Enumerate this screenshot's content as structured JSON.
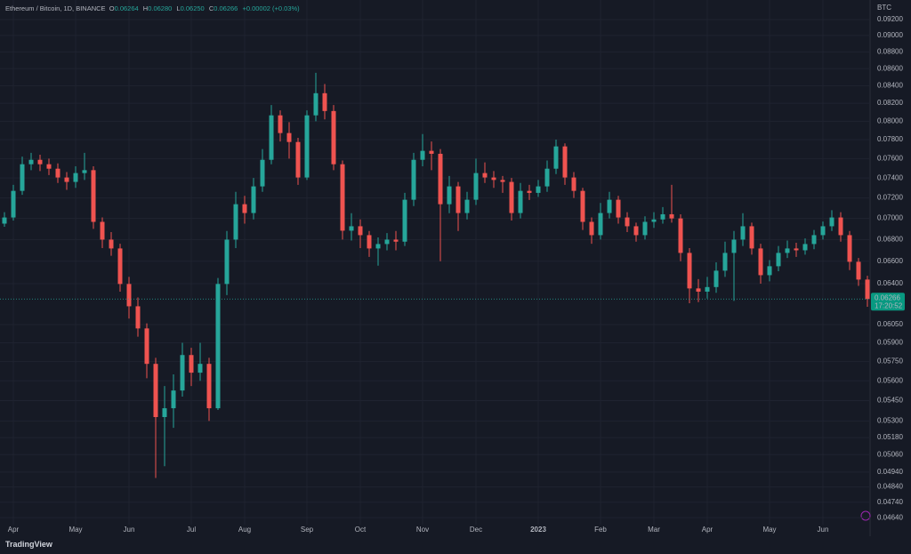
{
  "chart_data": {
    "type": "candlestick",
    "title": "Ethereum / Bitcoin, 1D, BINANCE",
    "header": {
      "o_label": "O",
      "o": "0.06264",
      "h_label": "H",
      "h": "0.06280",
      "l_label": "L",
      "l": "0.06250",
      "c_label": "C",
      "c": "0.06266",
      "change": "+0.00002 (+0.03%)"
    },
    "y_axis_label": "BTC",
    "y_scale": "log",
    "grid": true,
    "up_color": "#26a69a",
    "down_color": "#ef5350",
    "last_price": 0.06266,
    "countdown": "17:20:52",
    "brand": "TradingView",
    "ylim": [
      0.0454,
      0.0945
    ],
    "yticks": [
      {
        "value": 0.092,
        "label": "0.09200"
      },
      {
        "value": 0.09,
        "label": "0.09000"
      },
      {
        "value": 0.088,
        "label": "0.08800"
      },
      {
        "value": 0.086,
        "label": "0.08600"
      },
      {
        "value": 0.084,
        "label": "0.08400"
      },
      {
        "value": 0.082,
        "label": "0.08200"
      },
      {
        "value": 0.08,
        "label": "0.08000"
      },
      {
        "value": 0.078,
        "label": "0.07800"
      },
      {
        "value": 0.076,
        "label": "0.07600"
      },
      {
        "value": 0.074,
        "label": "0.07400"
      },
      {
        "value": 0.072,
        "label": "0.07200"
      },
      {
        "value": 0.07,
        "label": "0.07000"
      },
      {
        "value": 0.068,
        "label": "0.06800"
      },
      {
        "value": 0.066,
        "label": "0.06600"
      },
      {
        "value": 0.064,
        "label": "0.06400"
      },
      {
        "value": 0.0605,
        "label": "0.06050"
      },
      {
        "value": 0.059,
        "label": "0.05900"
      },
      {
        "value": 0.0575,
        "label": "0.05750"
      },
      {
        "value": 0.056,
        "label": "0.05600"
      },
      {
        "value": 0.0545,
        "label": "0.05450"
      },
      {
        "value": 0.053,
        "label": "0.05300"
      },
      {
        "value": 0.0518,
        "label": "0.05180"
      },
      {
        "value": 0.0506,
        "label": "0.05060"
      },
      {
        "value": 0.0494,
        "label": "0.04940"
      },
      {
        "value": 0.0484,
        "label": "0.04840"
      },
      {
        "value": 0.0474,
        "label": "0.04740"
      },
      {
        "value": 0.0464,
        "label": "0.04640"
      }
    ],
    "categories": [
      null,
      "Apr",
      null,
      null,
      null,
      null,
      null,
      null,
      "May",
      null,
      null,
      null,
      null,
      null,
      "Jun",
      null,
      null,
      null,
      null,
      null,
      null,
      "Jul",
      null,
      null,
      null,
      null,
      null,
      "Aug",
      null,
      null,
      null,
      null,
      null,
      null,
      "Sep",
      null,
      null,
      null,
      null,
      null,
      "Oct",
      null,
      null,
      null,
      null,
      null,
      null,
      "Nov",
      null,
      null,
      null,
      null,
      null,
      "Dec",
      null,
      null,
      null,
      null,
      null,
      null,
      "2023",
      null,
      null,
      null,
      null,
      null,
      null,
      "Feb",
      null,
      null,
      null,
      null,
      null,
      "Mar",
      null,
      null,
      null,
      null,
      null,
      "Apr",
      null,
      null,
      null,
      null,
      null,
      null,
      "May",
      null,
      null,
      null,
      null,
      null,
      "Jun",
      null,
      null,
      null,
      null,
      null
    ],
    "open": [
      0.0695,
      0.07009,
      0.0727,
      0.07541,
      0.07587,
      0.07541,
      0.07495,
      0.07405,
      0.0736,
      0.0745,
      0.0748,
      0.06967,
      0.06799,
      0.06717,
      0.06397,
      0.06204,
      0.06018,
      0.05732,
      0.05328,
      0.05393,
      0.05526,
      0.05802,
      0.05663,
      0.05732,
      0.05393,
      0.06397,
      0.06799,
      0.07138,
      0.07052,
      0.07315,
      0.07587,
      0.08065,
      0.07871,
      0.07775,
      0.07405,
      0.08065,
      0.08314,
      0.08113,
      0.07541,
      0.06883,
      0.06925,
      0.06841,
      0.06717,
      0.06758,
      0.06799,
      0.0678,
      0.07182,
      0.07587,
      0.07681,
      0.0765,
      0.07138,
      0.07315,
      0.07052,
      0.07182,
      0.0745,
      0.07405,
      0.0738,
      0.0736,
      0.07052,
      0.0727,
      0.0725,
      0.07315,
      0.07495,
      0.07728,
      0.07405,
      0.0727,
      0.06967,
      0.06841,
      0.07052,
      0.07182,
      0.07009,
      0.06925,
      0.06841,
      0.06967,
      0.0699,
      0.0704,
      0.07,
      0.06676,
      0.06358,
      0.0633,
      0.0637,
      0.06515,
      0.06676,
      0.06799,
      0.06925,
      0.06717,
      0.06475,
      0.06555,
      0.06676,
      0.06717,
      0.067,
      0.06758,
      0.06841,
      0.06925,
      0.07009,
      0.06841,
      0.06595,
      0.06436
    ],
    "high": [
      0.0706,
      0.0733,
      0.0762,
      0.0766,
      0.0764,
      0.076,
      0.0755,
      0.0746,
      0.0752,
      0.0766,
      0.0752,
      0.0701,
      0.0687,
      0.0676,
      0.0646,
      0.0628,
      0.0606,
      0.0578,
      0.0556,
      0.0565,
      0.059,
      0.0586,
      0.059,
      0.0578,
      0.0645,
      0.0688,
      0.0726,
      0.0722,
      0.074,
      0.077,
      0.0818,
      0.0812,
      0.0799,
      0.0782,
      0.0812,
      0.0855,
      0.0842,
      0.0818,
      0.0758,
      0.0705,
      0.0699,
      0.0688,
      0.0682,
      0.0686,
      0.0688,
      0.0725,
      0.0766,
      0.0786,
      0.0778,
      0.077,
      0.0742,
      0.0736,
      0.0726,
      0.076,
      0.0756,
      0.0747,
      0.0742,
      0.074,
      0.0735,
      0.0733,
      0.0738,
      0.0758,
      0.078,
      0.0776,
      0.0746,
      0.073,
      0.0701,
      0.0715,
      0.0726,
      0.0722,
      0.0706,
      0.0696,
      0.0702,
      0.0706,
      0.0711,
      0.0733,
      0.0704,
      0.0672,
      0.0644,
      0.0646,
      0.0659,
      0.0678,
      0.0688,
      0.0705,
      0.0696,
      0.0676,
      0.0661,
      0.0674,
      0.0679,
      0.0677,
      0.0681,
      0.0689,
      0.0697,
      0.0708,
      0.0706,
      0.0688,
      0.0663,
      0.0647
    ],
    "low": [
      0.0692,
      0.0698,
      0.0723,
      0.0748,
      0.0747,
      0.0743,
      0.0735,
      0.0728,
      0.073,
      0.0738,
      0.069,
      0.0672,
      0.0665,
      0.0633,
      0.061,
      0.0595,
      0.0562,
      0.049,
      0.0498,
      0.0525,
      0.0548,
      0.0556,
      0.056,
      0.053,
      0.0538,
      0.063,
      0.0672,
      0.0695,
      0.0699,
      0.0726,
      0.0754,
      0.0778,
      0.076,
      0.0733,
      0.0738,
      0.08,
      0.0802,
      0.0748,
      0.068,
      0.0679,
      0.0672,
      0.0664,
      0.0656,
      0.067,
      0.067,
      0.0674,
      0.0712,
      0.0752,
      0.0748,
      0.066,
      0.0705,
      0.0688,
      0.0699,
      0.0713,
      0.0735,
      0.073,
      0.0725,
      0.0698,
      0.07,
      0.0718,
      0.0721,
      0.0726,
      0.0744,
      0.0733,
      0.072,
      0.0689,
      0.0676,
      0.068,
      0.07,
      0.0695,
      0.0687,
      0.0678,
      0.068,
      0.0691,
      0.0695,
      0.0696,
      0.066,
      0.0623,
      0.0624,
      0.0627,
      0.0632,
      0.0646,
      0.0625,
      0.0674,
      0.0666,
      0.064,
      0.0642,
      0.0651,
      0.0663,
      0.0664,
      0.0666,
      0.0671,
      0.068,
      0.0688,
      0.0678,
      0.0652,
      0.0638,
      0.062
    ],
    "close": [
      0.07009,
      0.0727,
      0.07541,
      0.07587,
      0.07541,
      0.07495,
      0.07405,
      0.0736,
      0.0745,
      0.0748,
      0.06967,
      0.06799,
      0.06717,
      0.06397,
      0.06204,
      0.06018,
      0.05732,
      0.05328,
      0.05393,
      0.05526,
      0.05802,
      0.05663,
      0.05732,
      0.05393,
      0.06397,
      0.06799,
      0.07138,
      0.07052,
      0.07315,
      0.07587,
      0.08065,
      0.07871,
      0.07775,
      0.07405,
      0.08065,
      0.08314,
      0.08113,
      0.07541,
      0.06883,
      0.06925,
      0.06841,
      0.06717,
      0.06758,
      0.06799,
      0.0678,
      0.07182,
      0.07587,
      0.07681,
      0.0765,
      0.07138,
      0.07315,
      0.07052,
      0.07182,
      0.0745,
      0.07405,
      0.0738,
      0.0736,
      0.07052,
      0.0727,
      0.0725,
      0.07315,
      0.07495,
      0.07728,
      0.07405,
      0.0727,
      0.06967,
      0.06841,
      0.07052,
      0.07182,
      0.07009,
      0.06925,
      0.06841,
      0.06967,
      0.0699,
      0.0704,
      0.07,
      0.06676,
      0.06358,
      0.0633,
      0.0637,
      0.06515,
      0.06676,
      0.06799,
      0.06925,
      0.06717,
      0.06475,
      0.06555,
      0.06676,
      0.06717,
      0.067,
      0.06758,
      0.06841,
      0.06925,
      0.07009,
      0.06841,
      0.06595,
      0.06436,
      0.06266
    ]
  }
}
